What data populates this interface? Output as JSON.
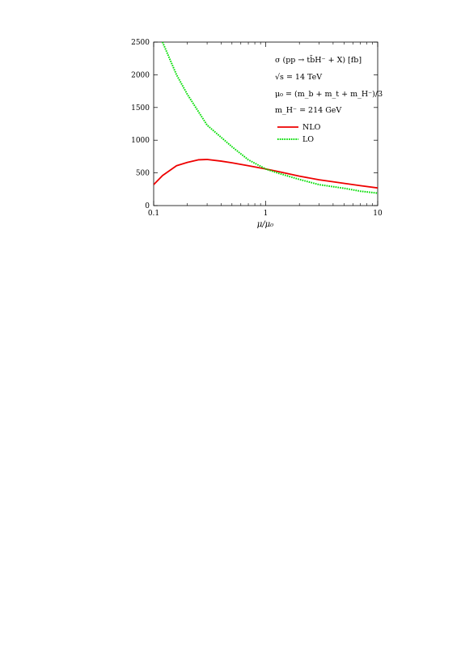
{
  "chart_data": {
    "type": "line",
    "x_scale": "log",
    "xlim": [
      0.1,
      10
    ],
    "ylim": [
      0,
      2500
    ],
    "xlabel": "μ/μ₀",
    "ylabel": "",
    "x_ticks": [
      {
        "value": 0.1,
        "label": "0.1"
      },
      {
        "value": 1,
        "label": "1"
      },
      {
        "value": 10,
        "label": "10"
      }
    ],
    "y_ticks": [
      {
        "value": 0,
        "label": "0"
      },
      {
        "value": 500,
        "label": "500"
      },
      {
        "value": 1000,
        "label": "1000"
      },
      {
        "value": 1500,
        "label": "1500"
      },
      {
        "value": 2000,
        "label": "2000"
      },
      {
        "value": 2500,
        "label": "2500"
      }
    ],
    "grid": false,
    "legend_position": "top-right",
    "annotations": [
      "σ (pp → tb̄H⁻ + X) [fb]",
      "√s = 14 TeV",
      "μ₀ = (m_b + m_t + m_H⁻)/3",
      "m_H⁻ = 214 GeV"
    ],
    "series": [
      {
        "name": "NLO",
        "color": "#ee0000",
        "dash": "solid",
        "x": [
          0.1,
          0.12,
          0.16,
          0.2,
          0.25,
          0.3,
          0.4,
          0.5,
          0.7,
          1.0,
          1.3,
          2.0,
          3.0,
          5.0,
          7.0,
          10.0
        ],
        "y": [
          320,
          460,
          610,
          660,
          700,
          705,
          680,
          655,
          610,
          560,
          520,
          450,
          395,
          340,
          305,
          270
        ]
      },
      {
        "name": "LO",
        "color": "#00dd00",
        "dash": "dotted",
        "x": [
          0.12,
          0.16,
          0.2,
          0.3,
          0.5,
          0.7,
          1.0,
          1.3,
          2.0,
          3.0,
          5.0,
          7.0,
          10.0
        ],
        "y": [
          2500,
          2000,
          1700,
          1230,
          900,
          700,
          560,
          495,
          400,
          320,
          265,
          220,
          190
        ]
      }
    ]
  }
}
